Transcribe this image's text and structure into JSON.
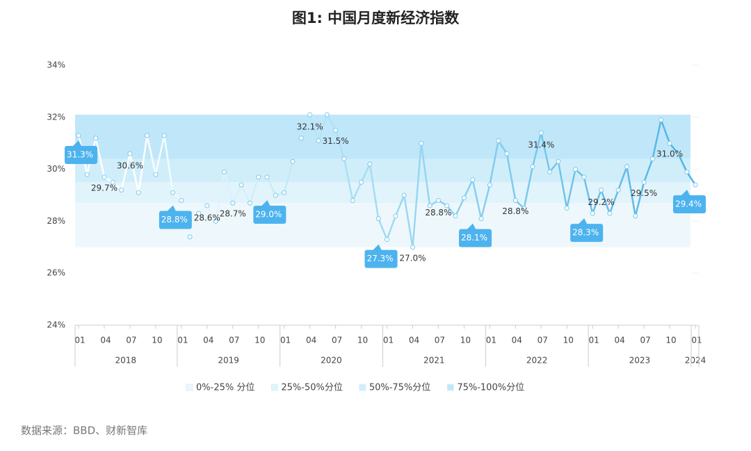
{
  "chart_data": {
    "type": "line",
    "title": "图1: 中国月度新经济指数",
    "source": "数据来源：BBD、财新智库",
    "ylim": [
      24,
      34
    ],
    "yticks": [
      {
        "value": 24,
        "label": "24%"
      },
      {
        "value": 26,
        "label": "26%"
      },
      {
        "value": 28,
        "label": "28%"
      },
      {
        "value": 30,
        "label": "30%"
      },
      {
        "value": 32,
        "label": "32%"
      },
      {
        "value": 34,
        "label": "34%"
      }
    ],
    "categories": [
      "01",
      null,
      null,
      "04",
      null,
      null,
      "07",
      null,
      null,
      "10",
      null,
      null,
      "01",
      null,
      null,
      "04",
      null,
      null,
      "07",
      null,
      null,
      "10",
      null,
      null,
      "01",
      null,
      null,
      "04",
      null,
      null,
      "07",
      null,
      null,
      "10",
      null,
      null,
      "01",
      null,
      null,
      "04",
      null,
      null,
      "07",
      null,
      null,
      "10",
      null,
      null,
      "01",
      null,
      null,
      "04",
      null,
      null,
      "07",
      null,
      null,
      "10",
      null,
      null,
      "01",
      null,
      null,
      "04",
      null,
      null,
      "07",
      null,
      null,
      "10",
      null,
      null,
      "01"
    ],
    "years": [
      "2018",
      "2019",
      "2020",
      "2021",
      "2022",
      "2023",
      "2024"
    ],
    "values": [
      31.3,
      29.8,
      31.2,
      29.7,
      29.5,
      29.2,
      30.6,
      29.1,
      31.3,
      29.8,
      31.3,
      29.1,
      28.8,
      27.4,
      28.3,
      28.6,
      28.0,
      29.9,
      28.7,
      29.4,
      28.7,
      29.7,
      29.7,
      29.0,
      29.1,
      30.3,
      31.2,
      32.1,
      31.1,
      32.1,
      31.5,
      30.4,
      28.8,
      29.5,
      30.2,
      28.1,
      27.3,
      28.2,
      29.0,
      27.0,
      31.0,
      28.6,
      28.8,
      28.6,
      28.2,
      28.9,
      29.6,
      28.1,
      29.4,
      31.1,
      30.6,
      28.8,
      28.5,
      30.1,
      31.4,
      29.9,
      30.3,
      28.5,
      30.0,
      29.7,
      28.3,
      29.2,
      28.3,
      29.2,
      30.1,
      28.2,
      29.5,
      30.4,
      31.9,
      31.0,
      30.6,
      29.9,
      29.4
    ],
    "value_labels": [
      null,
      null,
      null,
      "29.7%",
      null,
      null,
      "30.6%",
      null,
      null,
      null,
      null,
      null,
      null,
      null,
      null,
      "28.6%",
      null,
      null,
      "28.7%",
      null,
      null,
      null,
      null,
      null,
      null,
      null,
      null,
      "32.1%",
      null,
      null,
      "31.5%",
      null,
      null,
      null,
      null,
      null,
      null,
      null,
      null,
      "27.0%",
      null,
      null,
      "28.8%",
      null,
      null,
      null,
      null,
      null,
      null,
      null,
      null,
      "28.8%",
      null,
      null,
      "31.4%",
      null,
      null,
      null,
      null,
      null,
      null,
      "29.2%",
      null,
      null,
      null,
      null,
      "29.5%",
      null,
      null,
      "31.0%",
      null,
      null,
      null
    ],
    "callout_labels": [
      "31.3%",
      null,
      null,
      null,
      null,
      null,
      null,
      null,
      null,
      null,
      null,
      null,
      "28.8%",
      null,
      null,
      null,
      null,
      null,
      null,
      null,
      null,
      null,
      null,
      "29.0%",
      null,
      null,
      null,
      null,
      null,
      null,
      null,
      null,
      null,
      null,
      null,
      null,
      "27.3%",
      null,
      null,
      null,
      null,
      null,
      null,
      null,
      null,
      null,
      null,
      "28.1%",
      null,
      null,
      null,
      null,
      null,
      null,
      null,
      null,
      null,
      null,
      null,
      null,
      "28.3%",
      null,
      null,
      null,
      null,
      null,
      null,
      null,
      null,
      null,
      null,
      null,
      "29.4%"
    ],
    "line_colors": [
      "#ffffff",
      "#a8def5",
      "#4fb2e6"
    ],
    "callout_color": "#4db3ee",
    "bands": [
      {
        "name": "0%-25% 分位",
        "range": [
          27.0,
          28.7
        ],
        "color": "#eef8fc"
      },
      {
        "name": "25%-50%分位",
        "range": [
          28.7,
          29.5
        ],
        "color": "#e1f4fb"
      },
      {
        "name": "50%-75%分位",
        "range": [
          29.5,
          30.4
        ],
        "color": "#d0eefa"
      },
      {
        "name": "75%-100%分位",
        "range": [
          30.4,
          32.1
        ],
        "color": "#bfe7f9"
      }
    ]
  }
}
